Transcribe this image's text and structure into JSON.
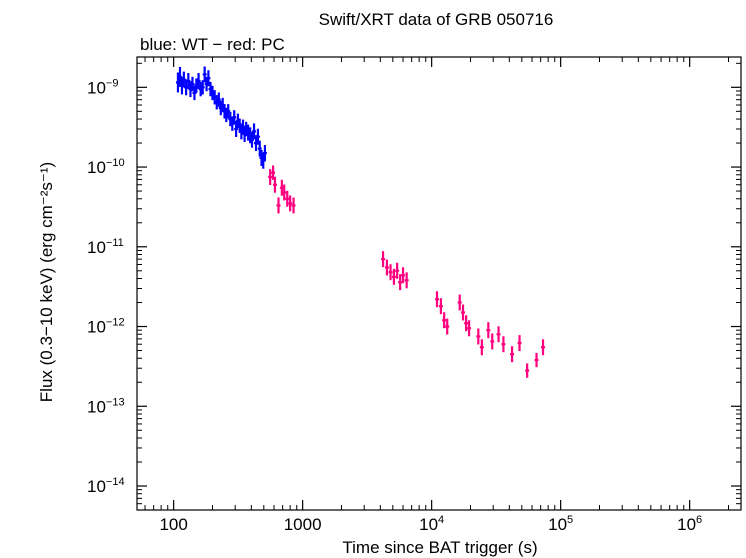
{
  "chart_data": {
    "type": "scatter",
    "title": "Swift/XRT data of GRB 050716",
    "subtitle": "blue: WT − red: PC",
    "xlabel": "Time since BAT trigger (s)",
    "ylabel": "Flux (0.3−10 keV) (erg cm⁻²s⁻¹)",
    "x_scale": "log",
    "y_scale": "log",
    "xlim": [
      52,
      2500000
    ],
    "ylim": [
      5e-15,
      2.4e-09
    ],
    "x_ticks": [
      {
        "value": 100,
        "base": "100",
        "exp": ""
      },
      {
        "value": 1000,
        "base": "1000",
        "exp": ""
      },
      {
        "value": 10000,
        "base": "10",
        "exp": "4"
      },
      {
        "value": 100000,
        "base": "10",
        "exp": "5"
      },
      {
        "value": 1000000,
        "base": "10",
        "exp": "6"
      }
    ],
    "y_ticks": [
      {
        "value": 1e-09,
        "base": "10",
        "exp": "−9"
      },
      {
        "value": 1e-10,
        "base": "10",
        "exp": "−10"
      },
      {
        "value": 1e-11,
        "base": "10",
        "exp": "−11"
      },
      {
        "value": 1e-12,
        "base": "10",
        "exp": "−12"
      },
      {
        "value": 1e-13,
        "base": "10",
        "exp": "−13"
      },
      {
        "value": 1e-14,
        "base": "10",
        "exp": "−14"
      }
    ],
    "grid": false,
    "series": [
      {
        "name": "WT",
        "color": "#0000ff",
        "points": [
          [
            108,
            1.15e-09,
            0.25
          ],
          [
            112,
            1.35e-09,
            0.25
          ],
          [
            116,
            1.05e-09,
            0.22
          ],
          [
            120,
            1.25e-09,
            0.2
          ],
          [
            125,
            1e-09,
            0.2
          ],
          [
            130,
            1.2e-09,
            0.2
          ],
          [
            135,
            9.5e-10,
            0.2
          ],
          [
            140,
            1.1e-09,
            0.18
          ],
          [
            145,
            8.5e-10,
            0.18
          ],
          [
            150,
            1.05e-09,
            0.18
          ],
          [
            156,
            1.2e-09,
            0.2
          ],
          [
            162,
            9.5e-10,
            0.18
          ],
          [
            168,
            1e-09,
            0.18
          ],
          [
            174,
            1.45e-09,
            0.2
          ],
          [
            180,
            1.1e-09,
            0.18
          ],
          [
            186,
            1.3e-09,
            0.2
          ],
          [
            193,
            9.5e-10,
            0.18
          ],
          [
            200,
            8.5e-10,
            0.18
          ],
          [
            208,
            7.5e-10,
            0.18
          ],
          [
            216,
            6.5e-10,
            0.18
          ],
          [
            224,
            7e-10,
            0.18
          ],
          [
            232,
            5.5e-10,
            0.18
          ],
          [
            240,
            6e-10,
            0.18
          ],
          [
            248,
            5e-10,
            0.18
          ],
          [
            256,
            4.5e-10,
            0.18
          ],
          [
            265,
            5e-10,
            0.18
          ],
          [
            275,
            4e-10,
            0.18
          ],
          [
            285,
            3.5e-10,
            0.18
          ],
          [
            295,
            4.2e-10,
            0.18
          ],
          [
            305,
            3e-10,
            0.2
          ],
          [
            315,
            3.8e-10,
            0.18
          ],
          [
            325,
            3.3e-10,
            0.18
          ],
          [
            335,
            2.8e-10,
            0.2
          ],
          [
            345,
            3.2e-10,
            0.18
          ],
          [
            355,
            2.6e-10,
            0.2
          ],
          [
            365,
            3e-10,
            0.18
          ],
          [
            378,
            2.7e-10,
            0.2
          ],
          [
            392,
            2.5e-10,
            0.2
          ],
          [
            405,
            2.2e-10,
            0.2
          ],
          [
            420,
            2.8e-10,
            0.2
          ],
          [
            435,
            2e-10,
            0.2
          ],
          [
            450,
            2.4e-10,
            0.2
          ],
          [
            465,
            1.7e-10,
            0.2
          ],
          [
            480,
            1.3e-10,
            0.2
          ],
          [
            495,
            1.2e-10,
            0.2
          ],
          [
            510,
            1.5e-10,
            0.2
          ]
        ]
      },
      {
        "name": "PC",
        "color": "#ff007f",
        "points": [
          [
            560,
            7.5e-11,
            0.2
          ],
          [
            590,
            8.5e-11,
            0.18
          ],
          [
            610,
            6e-11,
            0.2
          ],
          [
            650,
            3.3e-11,
            0.2
          ],
          [
            690,
            5.5e-11,
            0.2
          ],
          [
            720,
            4.8e-11,
            0.2
          ],
          [
            760,
            4e-11,
            0.2
          ],
          [
            800,
            3.5e-11,
            0.2
          ],
          [
            850,
            3.3e-11,
            0.2
          ],
          [
            4200,
            7e-12,
            0.2
          ],
          [
            4500,
            5.5e-12,
            0.2
          ],
          [
            4800,
            4.8e-12,
            0.2
          ],
          [
            5100,
            4.2e-12,
            0.2
          ],
          [
            5400,
            5e-12,
            0.2
          ],
          [
            5700,
            3.6e-12,
            0.2
          ],
          [
            6000,
            4.4e-12,
            0.2
          ],
          [
            6400,
            3.8e-12,
            0.2
          ],
          [
            11000,
            2.2e-12,
            0.2
          ],
          [
            11800,
            1.8e-12,
            0.2
          ],
          [
            12500,
            1.2e-12,
            0.2
          ],
          [
            13200,
            1e-12,
            0.2
          ],
          [
            16500,
            2e-12,
            0.2
          ],
          [
            17500,
            1.5e-12,
            0.2
          ],
          [
            18500,
            1.1e-12,
            0.2
          ],
          [
            19500,
            9.5e-13,
            0.2
          ],
          [
            23000,
            7.5e-13,
            0.2
          ],
          [
            24500,
            5.5e-13,
            0.2
          ],
          [
            27500,
            9e-13,
            0.2
          ],
          [
            29500,
            6.5e-13,
            0.2
          ],
          [
            33000,
            8e-13,
            0.2
          ],
          [
            36000,
            6e-13,
            0.2
          ],
          [
            42000,
            4.5e-13,
            0.2
          ],
          [
            48000,
            6.2e-13,
            0.2
          ],
          [
            55000,
            2.8e-13,
            0.18
          ],
          [
            65000,
            3.8e-13,
            0.18
          ],
          [
            73000,
            5.5e-13,
            0.2
          ]
        ]
      }
    ]
  }
}
